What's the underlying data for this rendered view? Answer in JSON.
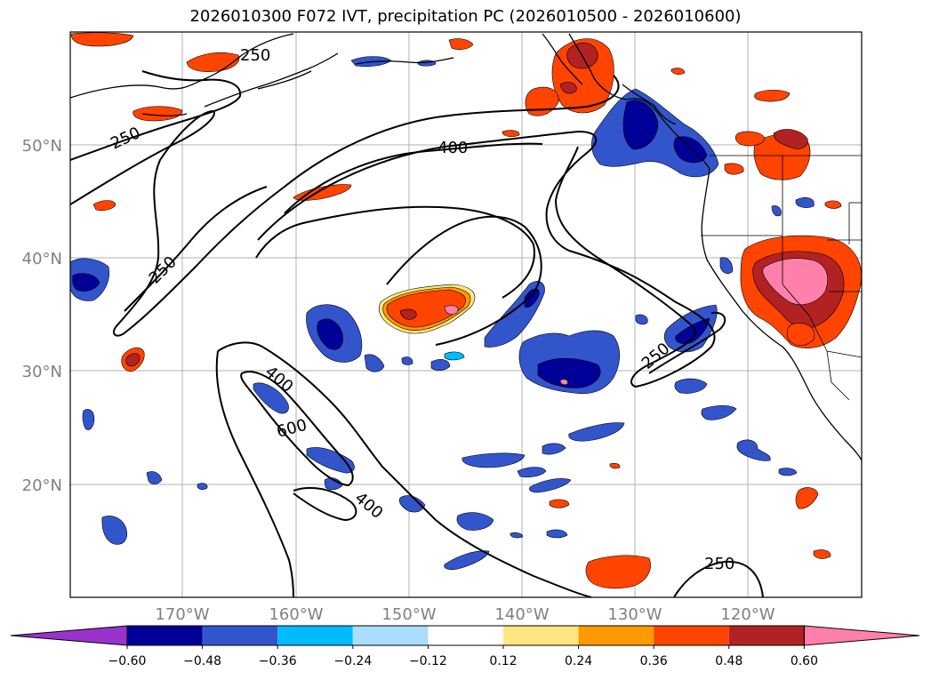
{
  "title": "2026010300 F072 IVT, precipitation PC (2026010500 - 2026010600)",
  "map": {
    "lat_labels": [
      "50°N",
      "40°N",
      "30°N",
      "20°N"
    ],
    "lon_labels": [
      "170°W",
      "160°W",
      "150°W",
      "140°W",
      "130°W",
      "120°W"
    ],
    "contour_labels": [
      {
        "id": "c250a",
        "text": "250"
      },
      {
        "id": "c250b",
        "text": "250"
      },
      {
        "id": "c250c",
        "text": "250"
      },
      {
        "id": "c400a",
        "text": "400"
      },
      {
        "id": "c400b",
        "text": "400"
      },
      {
        "id": "c600",
        "text": "600"
      },
      {
        "id": "c400c",
        "text": "400"
      },
      {
        "id": "c250d",
        "text": "250"
      },
      {
        "id": "c250e",
        "text": "250"
      }
    ],
    "colors": {
      "purple": "#9933cc",
      "navy": "#000099",
      "blue": "#3355cc",
      "cyan": "#00bbff",
      "lightblue": "#aaddff",
      "yellow": "#ffe680",
      "orange": "#ff9900",
      "redorange": "#ff4400",
      "darkred": "#b22222",
      "pink": "#ff80aa"
    }
  },
  "colorbar": {
    "ticks": [
      "−0.60",
      "−0.48",
      "−0.36",
      "−0.24",
      "−0.12",
      "0.12",
      "0.24",
      "0.36",
      "0.48",
      "0.60"
    ],
    "colors": [
      "#9933cc",
      "#000099",
      "#3355cc",
      "#00bbff",
      "#aaddff",
      "#ffffff",
      "#ffe680",
      "#ff9900",
      "#ff4400",
      "#b22222",
      "#ff80aa"
    ]
  }
}
